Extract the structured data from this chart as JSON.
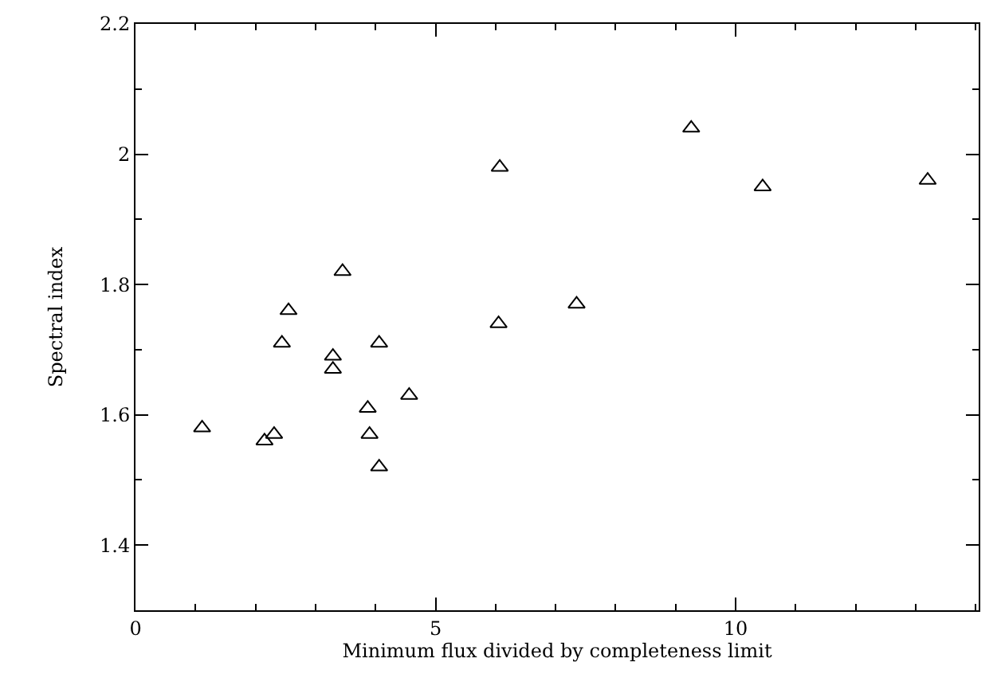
{
  "chart_data": {
    "type": "scatter",
    "xlabel": "Minimum flux divided by completeness limit",
    "ylabel": "Spectral index",
    "x": [
      1.11,
      2.15,
      2.31,
      2.44,
      2.55,
      3.29,
      3.29,
      3.45,
      3.87,
      3.9,
      4.06,
      4.06,
      4.56,
      6.07,
      6.05,
      7.35,
      9.26,
      10.45,
      13.2
    ],
    "values": [
      1.58,
      1.56,
      1.57,
      1.71,
      1.76,
      1.69,
      1.67,
      1.82,
      1.61,
      1.57,
      1.71,
      1.52,
      1.63,
      1.98,
      1.74,
      1.77,
      2.04,
      1.95,
      1.96
    ],
    "color": "#000000",
    "marker": "triangle",
    "xlim": [
      0,
      14.05
    ],
    "ylim": [
      1.3,
      2.2
    ],
    "xticks": [
      0,
      5,
      10
    ],
    "yticks": [
      1.4,
      1.6,
      1.8,
      2,
      2.2
    ],
    "legend": false
  }
}
